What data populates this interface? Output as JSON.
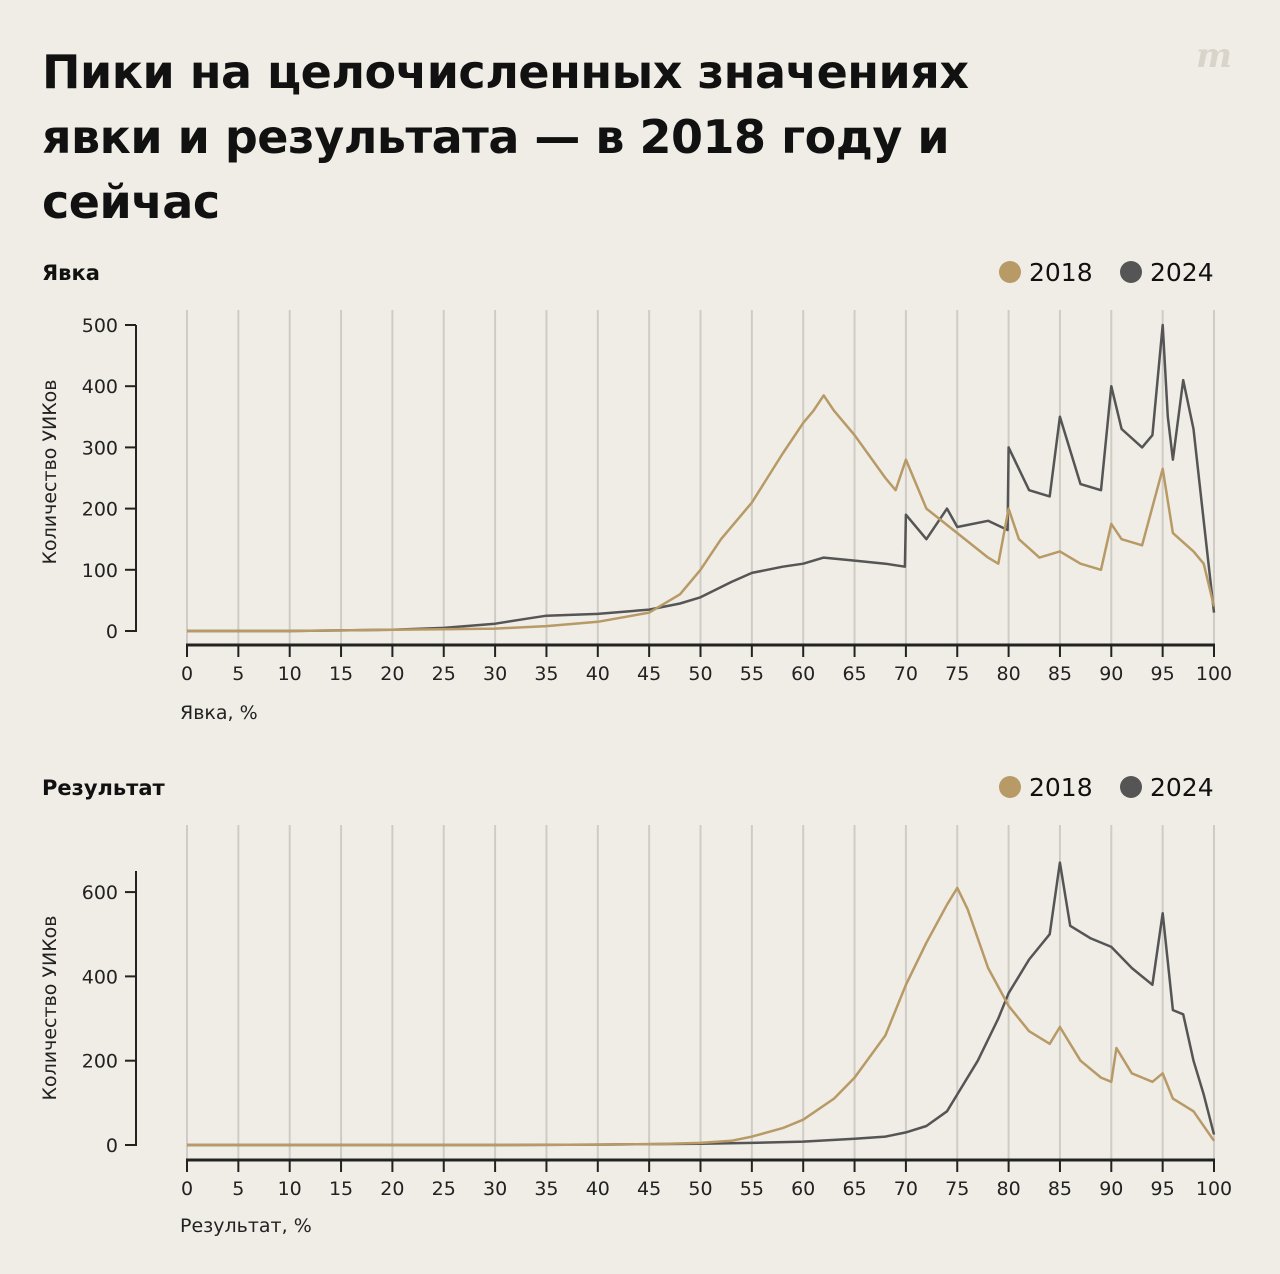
{
  "title": "Пики на целочисленных значениях явки и результата — в 2018 году и сейчас",
  "colors": {
    "background": "#f0ede6",
    "series_2018": "#b79a66",
    "series_2024": "#555555",
    "gridline": "#cfccc6",
    "axis": "#222222"
  },
  "chart_data": [
    {
      "type": "line",
      "title": "Явка",
      "xlabel": "Явка, %",
      "ylabel": "Количество УИКов",
      "xlim": [
        0,
        100
      ],
      "ylim": [
        0,
        500
      ],
      "xticks": [
        0,
        5,
        10,
        15,
        20,
        25,
        30,
        35,
        40,
        45,
        50,
        55,
        60,
        65,
        70,
        75,
        80,
        85,
        90,
        95,
        100
      ],
      "yticks": [
        0,
        100,
        200,
        300,
        400,
        500
      ],
      "grid": "vertical",
      "legend": "top-right",
      "series": [
        {
          "name": "2018",
          "x": [
            0,
            10,
            20,
            25,
            30,
            35,
            40,
            45,
            48,
            50,
            52,
            55,
            58,
            60,
            61,
            62,
            63,
            65,
            68,
            69,
            70,
            72,
            75,
            78,
            79,
            80,
            81,
            83,
            85,
            87,
            89,
            90,
            91,
            93,
            95,
            96,
            98,
            99,
            100
          ],
          "y": [
            0,
            0,
            2,
            3,
            4,
            8,
            15,
            30,
            60,
            100,
            150,
            210,
            290,
            340,
            360,
            385,
            360,
            320,
            250,
            230,
            280,
            200,
            160,
            120,
            110,
            200,
            150,
            120,
            130,
            110,
            100,
            175,
            150,
            140,
            265,
            160,
            130,
            110,
            40
          ]
        },
        {
          "name": "2024",
          "x": [
            0,
            10,
            20,
            25,
            30,
            33,
            35,
            40,
            45,
            48,
            50,
            53,
            55,
            58,
            60,
            62,
            65,
            68,
            69.9,
            70,
            72,
            74,
            75,
            78,
            79.9,
            80,
            82,
            84,
            85,
            87,
            89,
            90,
            91,
            93,
            94,
            95,
            95.5,
            96,
            97,
            98,
            99,
            100
          ],
          "y": [
            0,
            0,
            2,
            5,
            12,
            20,
            25,
            28,
            35,
            45,
            55,
            80,
            95,
            105,
            110,
            120,
            115,
            110,
            105,
            190,
            150,
            200,
            170,
            180,
            165,
            300,
            230,
            220,
            350,
            240,
            230,
            400,
            330,
            300,
            320,
            500,
            350,
            280,
            410,
            330,
            180,
            30
          ]
        }
      ]
    },
    {
      "type": "line",
      "title": "Результат",
      "xlabel": "Результат, %",
      "ylabel": "Количество УИКов",
      "xlim": [
        0,
        100
      ],
      "ylim": [
        0,
        650
      ],
      "xticks": [
        0,
        5,
        10,
        15,
        20,
        25,
        30,
        35,
        40,
        45,
        50,
        55,
        60,
        65,
        70,
        75,
        80,
        85,
        90,
        95,
        100
      ],
      "yticks": [
        0,
        200,
        400,
        600
      ],
      "grid": "vertical",
      "legend": "top-right",
      "series": [
        {
          "name": "2018",
          "x": [
            0,
            10,
            20,
            30,
            40,
            45,
            50,
            53,
            55,
            58,
            60,
            63,
            65,
            68,
            70,
            72,
            74,
            75,
            76,
            78,
            80,
            82,
            84,
            85,
            87,
            89,
            90,
            90.5,
            92,
            94,
            95,
            96,
            98,
            100
          ],
          "y": [
            0,
            0,
            0,
            0,
            1,
            2,
            5,
            10,
            20,
            40,
            60,
            110,
            160,
            260,
            380,
            480,
            570,
            610,
            560,
            420,
            330,
            270,
            240,
            280,
            200,
            160,
            150,
            230,
            170,
            150,
            170,
            110,
            80,
            10
          ]
        },
        {
          "name": "2024",
          "x": [
            0,
            10,
            20,
            30,
            40,
            50,
            55,
            60,
            65,
            68,
            70,
            72,
            74,
            75,
            77,
            79,
            80,
            82,
            84,
            85,
            86,
            88,
            90,
            92,
            94,
            95,
            96,
            97,
            98,
            99,
            100
          ],
          "y": [
            0,
            0,
            0,
            0,
            1,
            3,
            5,
            8,
            15,
            20,
            30,
            45,
            80,
            120,
            200,
            300,
            360,
            440,
            500,
            670,
            520,
            490,
            470,
            420,
            380,
            550,
            320,
            310,
            200,
            120,
            25
          ]
        }
      ]
    }
  ]
}
